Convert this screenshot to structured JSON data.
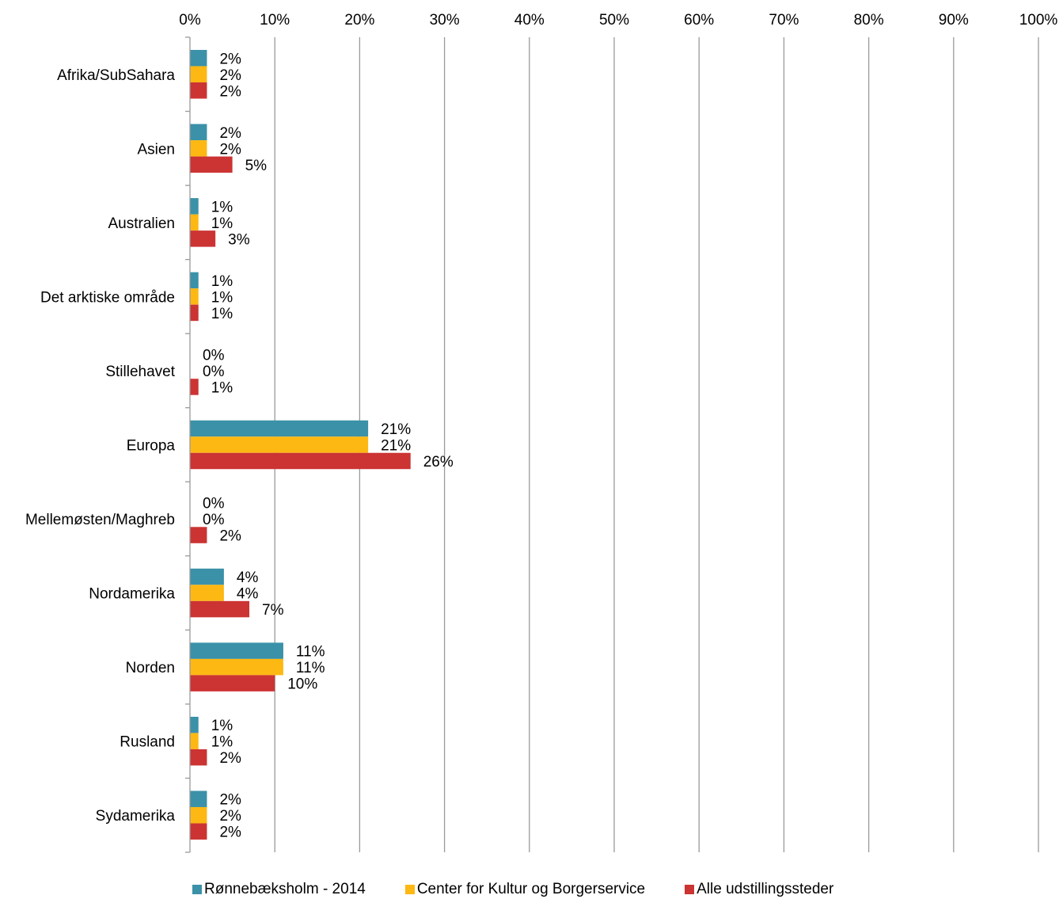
{
  "chart_data": {
    "type": "bar",
    "orientation": "horizontal",
    "title": "",
    "xlabel": "",
    "ylabel": "",
    "xlim": [
      0,
      100
    ],
    "x_ticks": [
      "0%",
      "10%",
      "20%",
      "30%",
      "40%",
      "50%",
      "60%",
      "70%",
      "80%",
      "90%",
      "100%"
    ],
    "x_axis_position": "top",
    "grid": "vertical",
    "legend_position": "bottom",
    "categories": [
      "Afrika/SubSahara",
      "Asien",
      "Australien",
      "Det arktiske område",
      "Stillehavet",
      "Europa",
      "Mellemøsten/Maghreb",
      "Nordamerika",
      "Norden",
      "Rusland",
      "Sydamerika"
    ],
    "series": [
      {
        "name": "Rønnebæksholm - 2014",
        "color": "#3A91A8",
        "values": [
          2,
          2,
          1,
          1,
          0,
          21,
          0,
          4,
          11,
          1,
          2
        ],
        "labels": [
          "2%",
          "2%",
          "1%",
          "1%",
          "0%",
          "21%",
          "0%",
          "4%",
          "11%",
          "1%",
          "2%"
        ]
      },
      {
        "name": "Center for Kultur og Borgerservice",
        "color": "#FDB813",
        "values": [
          2,
          2,
          1,
          1,
          0,
          21,
          0,
          4,
          11,
          1,
          2
        ],
        "labels": [
          "2%",
          "2%",
          "1%",
          "1%",
          "0%",
          "21%",
          "0%",
          "4%",
          "11%",
          "1%",
          "2%"
        ]
      },
      {
        "name": "Alle udstillingssteder",
        "color": "#CC3333",
        "values": [
          2,
          5,
          3,
          1,
          1,
          26,
          2,
          7,
          10,
          2,
          2
        ],
        "labels": [
          "2%",
          "5%",
          "3%",
          "1%",
          "1%",
          "26%",
          "2%",
          "7%",
          "10%",
          "2%",
          "2%"
        ]
      }
    ]
  }
}
